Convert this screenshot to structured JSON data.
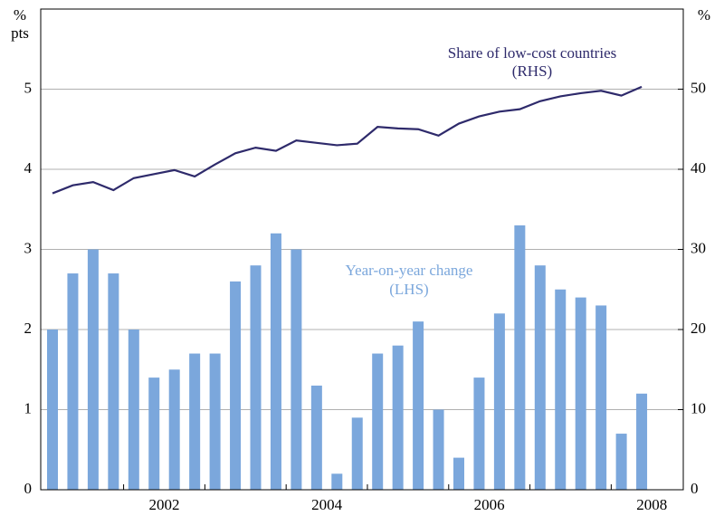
{
  "chart_data": {
    "type": "combo",
    "categories": [
      null,
      null,
      null,
      null,
      null,
      "2002",
      null,
      null,
      null,
      null,
      null,
      null,
      null,
      "2004",
      null,
      null,
      null,
      null,
      null,
      null,
      null,
      "2006",
      null,
      null,
      null,
      null,
      null,
      null,
      null,
      "2008"
    ],
    "series": [
      {
        "name": "Year-on-year change",
        "type": "bar",
        "axis": "y",
        "color": "#7ba7dc",
        "values": [
          2.0,
          2.7,
          3.0,
          2.7,
          2.0,
          1.4,
          1.5,
          1.7,
          1.7,
          2.6,
          2.8,
          3.2,
          3.0,
          1.3,
          0.2,
          0.9,
          1.7,
          1.8,
          2.1,
          1.0,
          0.4,
          1.4,
          2.2,
          3.3,
          2.8,
          2.5,
          2.4,
          2.3,
          0.7,
          1.2
        ]
      },
      {
        "name": "Share of low-cost countries",
        "type": "line",
        "axis": "y2",
        "color": "#2e2a6b",
        "values": [
          37.0,
          38.0,
          38.4,
          37.4,
          38.9,
          39.4,
          39.9,
          39.1,
          40.6,
          42.0,
          42.7,
          42.3,
          43.6,
          43.3,
          43.0,
          43.2,
          45.3,
          45.1,
          45.0,
          44.2,
          45.7,
          46.6,
          47.2,
          47.5,
          48.5,
          49.1,
          49.5,
          49.8,
          49.2,
          50.3
        ]
      }
    ],
    "annotations": [
      {
        "text": "Share of low-cost countries",
        "sub": "(RHS)"
      },
      {
        "text": "Year-on-year change",
        "sub": "(LHS)"
      }
    ],
    "y_unit": [
      "%",
      "pts"
    ],
    "y2_unit": "%",
    "ylim": [
      0,
      6
    ],
    "yticks": [
      0,
      1,
      2,
      3,
      4,
      5
    ],
    "y2lim": [
      0,
      60
    ],
    "y2ticks": [
      0,
      10,
      20,
      30,
      40,
      50
    ],
    "grid": true
  }
}
